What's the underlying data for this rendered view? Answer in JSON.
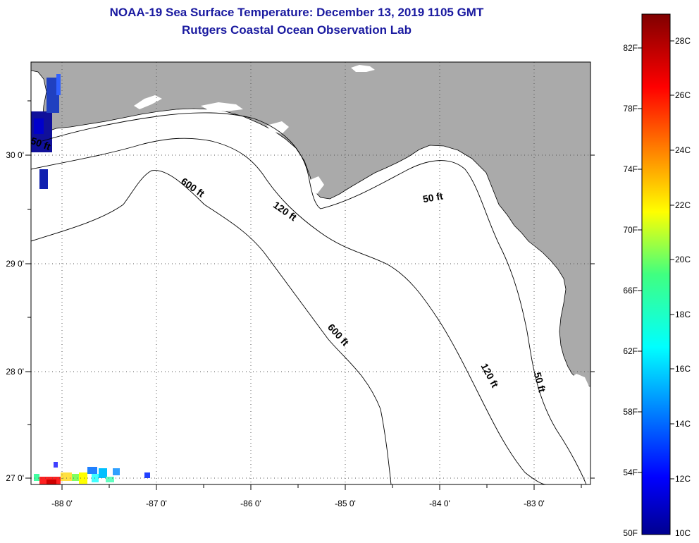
{
  "title_line1": "NOAA-19 Sea Surface Temperature:  December 13, 2019 1105 GMT",
  "title_line2": "Rutgers Coastal Ocean Observation Lab",
  "map": {
    "lon_range": [
      -88.33,
      -82.5
    ],
    "lat_range": [
      26.93,
      30.86
    ],
    "lon_ticks": [
      "-88 0'",
      "-87 0'",
      "-86 0'",
      "-85 0'",
      "-84 0'",
      "-83 0'"
    ],
    "lat_ticks": [
      "27 0'",
      "28 0'",
      "29 0'",
      "30 0'"
    ],
    "grid": true,
    "land_color": "#aaaaaa",
    "water_color": "#ffffff"
  },
  "contours": [
    {
      "label": "50 ft",
      "display": "50 ft"
    },
    {
      "label": "50 ft",
      "display": "50 ft"
    },
    {
      "label": "50 ft",
      "display": "50 ft"
    },
    {
      "label": "120 ft",
      "display": "120 ft"
    },
    {
      "label": "120 ft",
      "display": "120 ft"
    },
    {
      "label": "600 ft",
      "display": "600 ft"
    },
    {
      "label": "600 ft",
      "display": "600 ft"
    }
  ],
  "colorbar": {
    "fahrenheit_labels": [
      "82F",
      "78F",
      "74F",
      "70F",
      "66F",
      "62F",
      "58F",
      "54F",
      "50F"
    ],
    "celsius_labels": [
      "28C",
      "26C",
      "24C",
      "22C",
      "20C",
      "18C",
      "16C",
      "14C",
      "12C",
      "10C"
    ],
    "colormap": "jet"
  }
}
